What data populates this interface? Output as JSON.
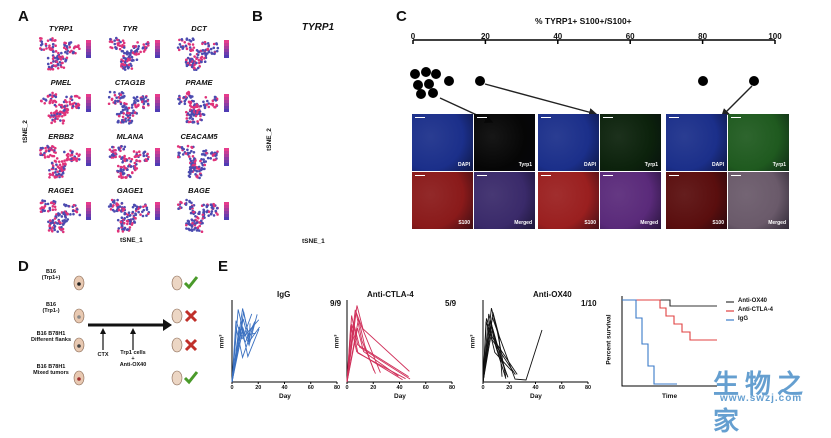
{
  "panels": {
    "a": "A",
    "b": "B",
    "c": "C",
    "d": "D",
    "e": "E"
  },
  "panel_a": {
    "genes": [
      "TYRP1",
      "TYR",
      "DCT",
      "PMEL",
      "CTAG1B",
      "PRAME",
      "ERBB2",
      "MLANA",
      "CEACAM5",
      "RAGE1",
      "GAGE1",
      "BAGE"
    ],
    "x_label": "tSNE_1",
    "y_label": "tSNE_2"
  },
  "panel_b": {
    "title": "TYRP1",
    "y_label": "tSNE_2",
    "x_label": "tSNE_1"
  },
  "panel_c": {
    "axis_title": "% TYRP1+ S100+/S100+",
    "ticks": [
      "0",
      "20",
      "40",
      "60",
      "80",
      "100"
    ],
    "channels": [
      "DAPI",
      "Tyrp1",
      "S100",
      "Merged"
    ]
  },
  "panel_d": {
    "groups": [
      "B16\n(Trp1+)",
      "B16\n(Trp1-)",
      "B16 B78H1\nDifferent flanks",
      "B16 B78H1\nMixed tumors"
    ],
    "step1": "CTX",
    "step2": "Trp1 cells\n+\nAnti-OX40"
  },
  "panel_e": {
    "charts": [
      {
        "title": "IgG",
        "ratio": "9/9"
      },
      {
        "title": "Anti-CTLA-4",
        "ratio": "5/9"
      },
      {
        "title": "Anti-OX40",
        "ratio": "1/10"
      }
    ],
    "x_label": "Day",
    "y_label": "mm³",
    "x_ticks": [
      "0",
      "20",
      "40",
      "60",
      "80"
    ],
    "survival": {
      "y_label": "Percent survival",
      "x_label": "Time",
      "legend": [
        "Anti-OX40",
        "Anti-CTLA-4",
        "IgG"
      ],
      "colors": [
        "#333333",
        "#e04040",
        "#3a7ac8"
      ]
    }
  },
  "watermark": {
    "text": "生物之家",
    "url": "www.swzj.com"
  }
}
